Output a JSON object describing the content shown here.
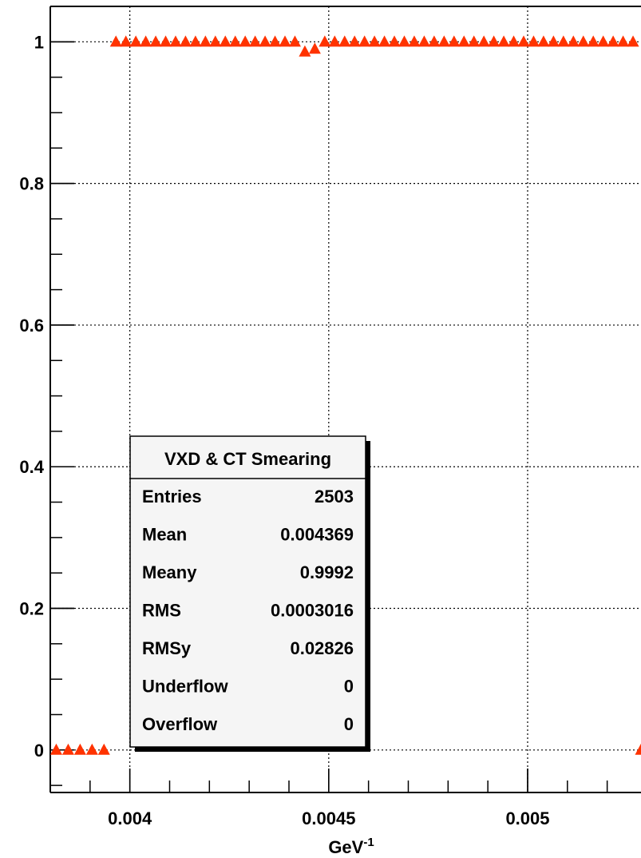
{
  "chart_data": {
    "type": "scatter",
    "x_label": "GeV",
    "x_label_sup": "-1",
    "xlim": [
      0.0038,
      0.005285
    ],
    "ylim": [
      -0.06,
      1.05
    ],
    "xticks": [
      0.004,
      0.0045,
      0.005
    ],
    "yticks": [
      0,
      0.2,
      0.4,
      0.6,
      0.8,
      1
    ],
    "grid": true,
    "series": [
      {
        "color": "#ff3300",
        "x": [
          0.003815,
          0.003845,
          0.003875,
          0.003905,
          0.003935,
          0.003965,
          0.00399,
          0.004015,
          0.00404,
          0.004065,
          0.00409,
          0.004115,
          0.00414,
          0.004165,
          0.00419,
          0.004215,
          0.00424,
          0.004265,
          0.00429,
          0.004315,
          0.00434,
          0.004365,
          0.00439,
          0.004415,
          0.00444,
          0.004465,
          0.00449,
          0.004515,
          0.00454,
          0.004565,
          0.00459,
          0.004615,
          0.00464,
          0.004665,
          0.00469,
          0.004715,
          0.00474,
          0.004765,
          0.00479,
          0.004815,
          0.00484,
          0.004865,
          0.00489,
          0.004915,
          0.00494,
          0.004965,
          0.00499,
          0.005015,
          0.00504,
          0.005065,
          0.00509,
          0.005115,
          0.00514,
          0.005165,
          0.00519,
          0.005215,
          0.00524,
          0.005265,
          0.005285
        ],
        "values": [
          0,
          0,
          0,
          0,
          0,
          1,
          1,
          1,
          1,
          1,
          1,
          1,
          1,
          1,
          1,
          1,
          1,
          1,
          1,
          1,
          1,
          1,
          1,
          1,
          0.986,
          0.99,
          1,
          1,
          1,
          1,
          1,
          1,
          1,
          1,
          1,
          1,
          1,
          1,
          1,
          1,
          1,
          1,
          1,
          1,
          1,
          1,
          1,
          1,
          1,
          1,
          1,
          1,
          1,
          1,
          1,
          1,
          1,
          1,
          0
        ]
      }
    ],
    "stats": {
      "title": "VXD & CT Smearing",
      "rows": [
        [
          "Entries",
          "2503"
        ],
        [
          "Mean",
          "0.004369"
        ],
        [
          "Meany",
          "0.9992"
        ],
        [
          "RMS",
          "0.0003016"
        ],
        [
          "RMSy",
          "0.02826"
        ],
        [
          "Underflow",
          "0"
        ],
        [
          "Overflow",
          "0"
        ]
      ]
    }
  }
}
